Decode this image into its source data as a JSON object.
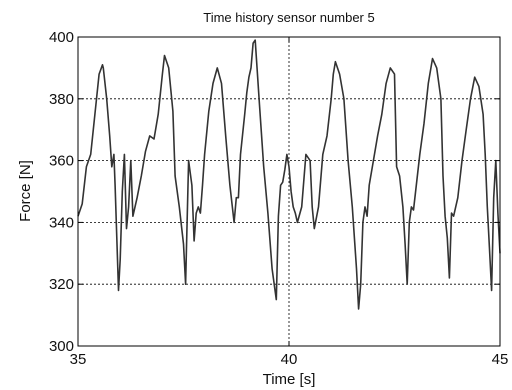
{
  "chart_data": {
    "type": "line",
    "title": "Time history sensor number 5",
    "xlabel": "Time [s]",
    "ylabel": "Force [N]",
    "xlim": [
      35,
      45
    ],
    "ylim": [
      300,
      400
    ],
    "xticks": [
      "35",
      "40",
      "45"
    ],
    "yticks": [
      "300",
      "320",
      "340",
      "360",
      "380",
      "400"
    ],
    "grid": true,
    "colors": {
      "line": "#333333",
      "axes": "#000000",
      "grid": "#000000"
    },
    "series": [
      {
        "x": [
          35.0,
          35.1,
          35.2,
          35.3,
          35.4,
          35.5,
          35.58,
          35.6,
          35.68,
          35.75,
          35.8,
          35.85,
          35.88,
          35.92,
          35.96,
          36.0,
          36.05,
          36.1,
          36.15,
          36.2,
          36.25,
          36.3,
          36.4,
          36.5,
          36.6,
          36.7,
          36.8,
          36.9,
          37.0,
          37.05,
          37.15,
          37.25,
          37.3,
          37.4,
          37.5,
          37.55,
          37.62,
          37.7,
          37.75,
          37.8,
          37.85,
          37.9,
          37.95,
          38.0,
          38.1,
          38.2,
          38.3,
          38.4,
          38.5,
          38.6,
          38.7,
          38.75,
          38.8,
          38.85,
          38.95,
          39.0,
          39.05,
          39.1,
          39.15,
          39.2,
          39.3,
          39.4,
          39.5,
          39.6,
          39.7,
          39.75,
          39.8,
          39.85,
          39.9,
          39.95,
          40.0,
          40.05,
          40.1,
          40.15,
          40.2,
          40.3,
          40.4,
          40.5,
          40.55,
          40.6,
          40.7,
          40.8,
          40.9,
          41.0,
          41.05,
          41.1,
          41.2,
          41.3,
          41.4,
          41.5,
          41.6,
          41.65,
          41.7,
          41.75,
          41.8,
          41.85,
          41.9,
          42.0,
          42.1,
          42.2,
          42.3,
          42.4,
          42.5,
          42.55,
          42.62,
          42.7,
          42.75,
          42.8,
          42.85,
          42.9,
          42.95,
          43.0,
          43.1,
          43.2,
          43.3,
          43.4,
          43.5,
          43.6,
          43.65,
          43.7,
          43.75,
          43.8,
          43.85,
          43.9,
          44.0,
          44.1,
          44.2,
          44.3,
          44.4,
          44.5,
          44.6,
          44.65,
          44.7,
          44.75,
          44.8,
          44.85,
          44.9,
          44.95,
          45.0
        ],
        "y": [
          342,
          346,
          358,
          362,
          375,
          388,
          391,
          390,
          380,
          368,
          358,
          362,
          352,
          335,
          318,
          328,
          350,
          362,
          338,
          345,
          360,
          342,
          348,
          355,
          363,
          368,
          367,
          375,
          388,
          394,
          390,
          376,
          355,
          345,
          333,
          320,
          360,
          352,
          334,
          343,
          345,
          343,
          352,
          362,
          376,
          385,
          390,
          385,
          368,
          352,
          340,
          348,
          348,
          362,
          375,
          382,
          387,
          390,
          398,
          399,
          378,
          358,
          343,
          325,
          315,
          342,
          352,
          353,
          357,
          362,
          358,
          350,
          345,
          343,
          340,
          345,
          362,
          360,
          345,
          338,
          345,
          362,
          368,
          380,
          388,
          392,
          388,
          380,
          360,
          345,
          325,
          312,
          320,
          340,
          345,
          342,
          352,
          360,
          368,
          375,
          385,
          390,
          388,
          358,
          355,
          345,
          333,
          320,
          340,
          345,
          344,
          350,
          362,
          372,
          385,
          393,
          390,
          380,
          355,
          342,
          335,
          322,
          343,
          342,
          348,
          360,
          370,
          380,
          387,
          384,
          375,
          362,
          345,
          332,
          318,
          348,
          360,
          343,
          330
        ]
      }
    ]
  }
}
